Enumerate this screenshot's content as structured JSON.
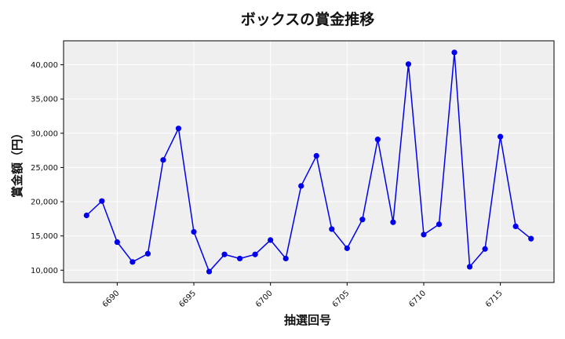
{
  "chart_data": {
    "type": "line",
    "title": "ボックスの賞金推移",
    "xlabel": "抽選回号",
    "ylabel": "賞金額（円）",
    "x": [
      6688,
      6689,
      6690,
      6691,
      6692,
      6693,
      6694,
      6695,
      6696,
      6697,
      6698,
      6699,
      6700,
      6701,
      6702,
      6703,
      6704,
      6705,
      6706,
      6707,
      6708,
      6709,
      6710,
      6711,
      6712,
      6713,
      6714,
      6715,
      6716,
      6717
    ],
    "series": [
      {
        "values": [
          18000,
          20100,
          14100,
          11200,
          12400,
          26100,
          30700,
          15600,
          9800,
          12300,
          11700,
          12300,
          14400,
          11700,
          22300,
          26700,
          16000,
          13200,
          17400,
          29100,
          17000,
          40100,
          15200,
          16700,
          41800,
          10500,
          13100,
          29500,
          16400,
          14600
        ],
        "color": "#0000ee"
      }
    ],
    "xlim": [
      6686.5,
      6718.5
    ],
    "ylim": [
      8200,
      43500
    ],
    "x_ticks": [
      6690,
      6695,
      6700,
      6705,
      6710,
      6715
    ],
    "x_tick_labels": [
      "6690",
      "6695",
      "6700",
      "6705",
      "6710",
      "6715"
    ],
    "y_ticks": [
      10000,
      15000,
      20000,
      25000,
      30000,
      35000,
      40000
    ],
    "y_tick_labels": [
      "10,000",
      "15,000",
      "20,000",
      "25,000",
      "30,000",
      "35,000",
      "40,000"
    ],
    "grid": true,
    "background": "#efefef"
  }
}
